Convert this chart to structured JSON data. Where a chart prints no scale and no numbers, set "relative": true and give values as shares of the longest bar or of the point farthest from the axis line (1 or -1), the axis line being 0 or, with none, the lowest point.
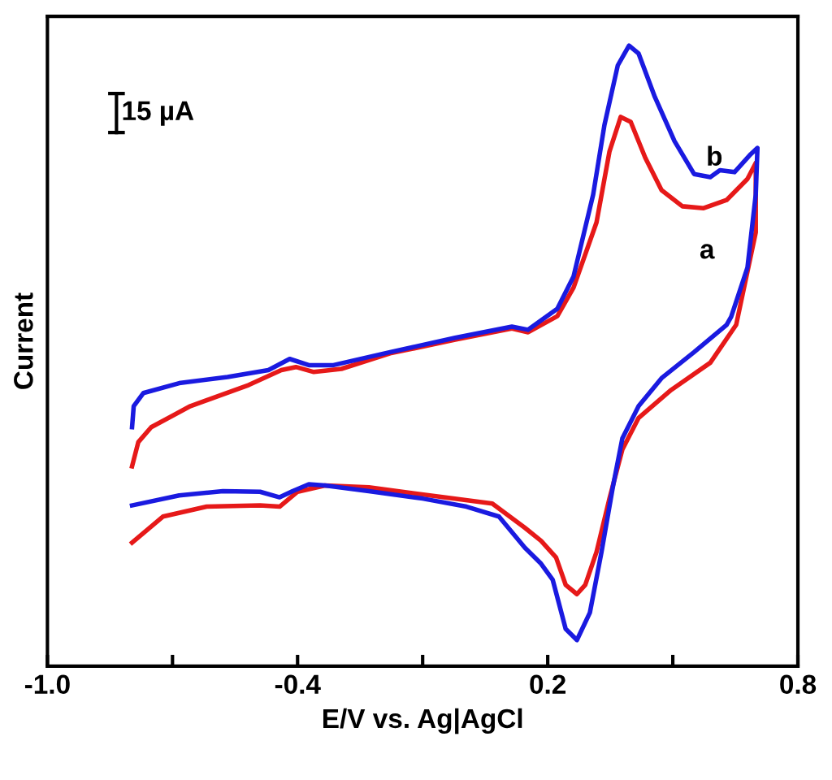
{
  "chart_data": {
    "type": "line",
    "xlabel": "E/V vs. Ag|AgCl",
    "ylabel": "Current",
    "relative": true,
    "tick_labels": "x",
    "xlim": [
      -1.0,
      0.8
    ],
    "xticks": [
      {
        "value": -1.0,
        "label": "-1.0"
      },
      {
        "value": -0.7,
        "label": null
      },
      {
        "value": -0.4,
        "label": "-0.4"
      },
      {
        "value": -0.1,
        "label": null
      },
      {
        "value": 0.2,
        "label": "0.2"
      },
      {
        "value": 0.5,
        "label": null
      },
      {
        "value": 0.8,
        "label": "0.8"
      }
    ],
    "annotations": [
      "15 µA"
    ],
    "grid": false,
    "legend": false,
    "marker": "none",
    "line_style": "solid",
    "series": [
      {
        "name": "a",
        "color": "#e61919",
        "x": [
          -0.797,
          -0.782,
          -0.751,
          -0.657,
          -0.517,
          -0.439,
          -0.404,
          -0.361,
          -0.295,
          -0.178,
          -0.022,
          0.114,
          0.153,
          0.223,
          0.262,
          0.317,
          0.348,
          0.375,
          0.399,
          0.434,
          0.473,
          0.523,
          0.574,
          0.629,
          0.679,
          0.699,
          0.699,
          0.652,
          0.59,
          0.496,
          0.418,
          0.379,
          0.348,
          0.317,
          0.29,
          0.27,
          0.243,
          0.22,
          0.184,
          0.145,
          0.067,
          -0.049,
          -0.229,
          -0.334,
          -0.4,
          -0.443,
          -0.49,
          -0.618,
          -0.723,
          -0.797
        ],
        "values": [
          0.322,
          0.361,
          0.385,
          0.419,
          0.453,
          0.477,
          0.482,
          0.474,
          0.479,
          0.504,
          0.526,
          0.544,
          0.538,
          0.564,
          0.61,
          0.715,
          0.829,
          0.885,
          0.877,
          0.819,
          0.767,
          0.741,
          0.738,
          0.751,
          0.785,
          0.811,
          0.699,
          0.55,
          0.489,
          0.445,
          0.4,
          0.349,
          0.27,
          0.184,
          0.131,
          0.116,
          0.131,
          0.175,
          0.202,
          0.223,
          0.262,
          0.272,
          0.288,
          0.291,
          0.281,
          0.257,
          0.259,
          0.257,
          0.241,
          0.199
        ]
      },
      {
        "name": "b",
        "color": "#1a1ae0",
        "x": [
          -0.797,
          -0.793,
          -0.77,
          -0.684,
          -0.568,
          -0.47,
          -0.419,
          -0.373,
          -0.314,
          -0.178,
          -0.022,
          0.114,
          0.153,
          0.223,
          0.262,
          0.309,
          0.336,
          0.368,
          0.395,
          0.418,
          0.457,
          0.504,
          0.551,
          0.59,
          0.613,
          0.648,
          0.687,
          0.703,
          0.699,
          0.679,
          0.64,
          0.629,
          0.551,
          0.473,
          0.418,
          0.379,
          0.356,
          0.329,
          0.301,
          0.27,
          0.243,
          0.212,
          0.184,
          0.145,
          0.083,
          0.005,
          -0.1,
          -0.229,
          -0.334,
          -0.373,
          -0.412,
          -0.443,
          -0.49,
          -0.579,
          -0.684,
          -0.797
        ],
        "values": [
          0.385,
          0.419,
          0.44,
          0.456,
          0.466,
          0.477,
          0.495,
          0.485,
          0.485,
          0.506,
          0.529,
          0.547,
          0.542,
          0.576,
          0.628,
          0.76,
          0.872,
          0.968,
          1.0,
          0.987,
          0.917,
          0.846,
          0.793,
          0.788,
          0.799,
          0.796,
          0.825,
          0.835,
          0.76,
          0.642,
          0.563,
          0.55,
          0.506,
          0.464,
          0.419,
          0.367,
          0.288,
          0.184,
          0.086,
          0.042,
          0.06,
          0.139,
          0.165,
          0.191,
          0.241,
          0.257,
          0.27,
          0.282,
          0.291,
          0.293,
          0.282,
          0.272,
          0.281,
          0.282,
          0.275,
          0.259
        ]
      }
    ]
  }
}
